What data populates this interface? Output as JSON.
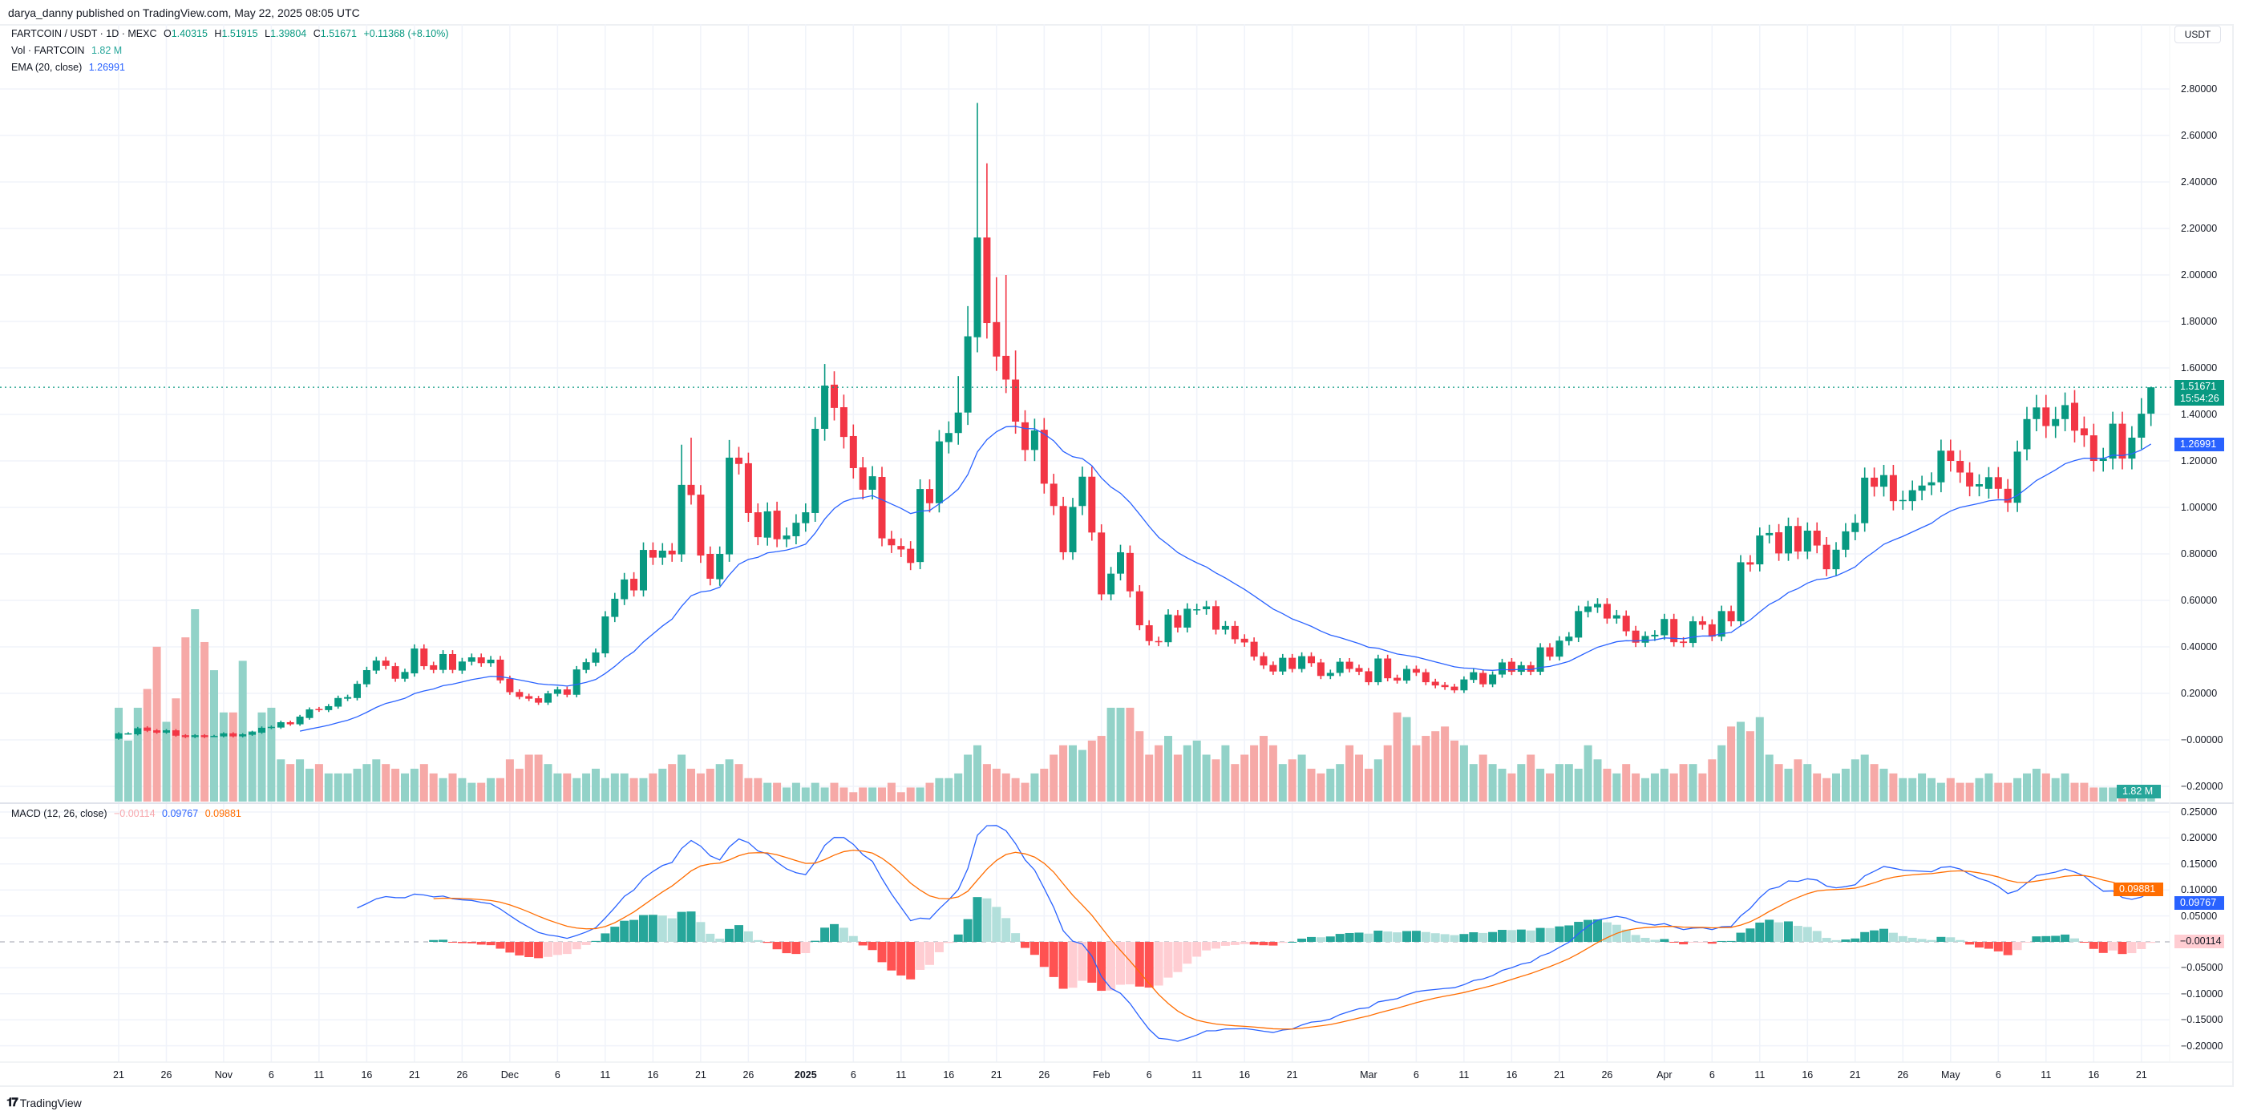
{
  "publisher": "darya_danny published on TradingView.com, May 22, 2025 08:05 UTC",
  "legend": {
    "symbol": "FARTCOIN / USDT · 1D · MEXC",
    "o_label": "O",
    "o": "1.40315",
    "h_label": "H",
    "h": "1.51915",
    "l_label": "L",
    "l": "1.39804",
    "c_label": "C",
    "c": "1.51671",
    "change": "+0.11368 (+8.10%)",
    "vol_label": "Vol · FARTCOIN",
    "vol": "1.82 M",
    "ema_label": "EMA (20, close)",
    "ema": "1.26991",
    "macd_label": "MACD (12, 26, close)",
    "macd_hist": "−0.00114",
    "macd": "0.09767",
    "macd_signal": "0.09881"
  },
  "currency_button": "USDT",
  "badges": {
    "price": "1.51671",
    "countdown": "15:54:26",
    "ema": "1.26991",
    "volume": "1.82 M",
    "signal": "0.09881",
    "macd": "0.09767",
    "hist": "−0.00114"
  },
  "brand": "TradingView",
  "colors": {
    "up": "#089981",
    "down": "#F23645",
    "vol_up": "#92D2C8",
    "vol_down": "#F6A9A7",
    "ema": "#2962FF",
    "macd": "#2962FF",
    "signal": "#FF6D00",
    "hist_up_strong": "#26A69A",
    "hist_up_weak": "#B2DFDB",
    "hist_down_strong": "#FF5252",
    "hist_down_weak": "#FFCDD2"
  },
  "chart_data": {
    "type": "candlestick",
    "title": "FARTCOIN / USDT · 1D · MEXC",
    "first_date": "2024-10-21",
    "last_date": "2025-05-22",
    "price_axis": {
      "unit": "USDT",
      "ticks": [
        "2.80000",
        "2.60000",
        "2.40000",
        "2.20000",
        "2.00000",
        "1.80000",
        "1.60000",
        "1.40000",
        "1.20000",
        "1.00000",
        "0.80000",
        "0.60000",
        "0.40000",
        "0.20000",
        "−0.00000",
        "−0.20000"
      ]
    },
    "macd_axis": {
      "ticks": [
        "0.25000",
        "0.20000",
        "0.15000",
        "0.10000",
        "0.05000",
        "−0.05000",
        "−0.10000",
        "−0.15000",
        "−0.20000"
      ]
    },
    "time_axis": [
      {
        "label": "21",
        "day": 0
      },
      {
        "label": "26",
        "day": 5
      },
      {
        "label": "Nov",
        "day": 11
      },
      {
        "label": "6",
        "day": 16
      },
      {
        "label": "11",
        "day": 21
      },
      {
        "label": "16",
        "day": 26
      },
      {
        "label": "21",
        "day": 31
      },
      {
        "label": "26",
        "day": 36
      },
      {
        "label": "Dec",
        "day": 41
      },
      {
        "label": "6",
        "day": 46
      },
      {
        "label": "11",
        "day": 51
      },
      {
        "label": "16",
        "day": 56
      },
      {
        "label": "21",
        "day": 61
      },
      {
        "label": "26",
        "day": 66
      },
      {
        "label": "2025",
        "day": 72
      },
      {
        "label": "6",
        "day": 77
      },
      {
        "label": "11",
        "day": 82
      },
      {
        "label": "16",
        "day": 87
      },
      {
        "label": "21",
        "day": 92
      },
      {
        "label": "26",
        "day": 97
      },
      {
        "label": "Feb",
        "day": 103
      },
      {
        "label": "6",
        "day": 108
      },
      {
        "label": "11",
        "day": 113
      },
      {
        "label": "16",
        "day": 118
      },
      {
        "label": "21",
        "day": 123
      },
      {
        "label": "Mar",
        "day": 131
      },
      {
        "label": "6",
        "day": 136
      },
      {
        "label": "11",
        "day": 141
      },
      {
        "label": "16",
        "day": 146
      },
      {
        "label": "21",
        "day": 151
      },
      {
        "label": "26",
        "day": 156
      },
      {
        "label": "Apr",
        "day": 162
      },
      {
        "label": "6",
        "day": 167
      },
      {
        "label": "11",
        "day": 172
      },
      {
        "label": "16",
        "day": 177
      },
      {
        "label": "21",
        "day": 182
      },
      {
        "label": "26",
        "day": 187
      },
      {
        "label": "May",
        "day": 192
      },
      {
        "label": "6",
        "day": 197
      },
      {
        "label": "11",
        "day": 202
      },
      {
        "label": "16",
        "day": 207
      },
      {
        "label": "21",
        "day": 212
      }
    ],
    "last_price": 1.51671,
    "oc": [
      [
        0.005,
        0.028
      ],
      [
        0.028,
        0.028
      ],
      [
        0.024,
        0.05
      ],
      [
        0.053,
        0.039
      ],
      [
        0.041,
        0.031
      ],
      [
        0.031,
        0.041
      ],
      [
        0.041,
        0.018
      ],
      [
        0.02,
        0.012
      ],
      [
        0.012,
        0.02
      ],
      [
        0.02,
        0.012
      ],
      [
        0.017,
        0.017
      ],
      [
        0.015,
        0.028
      ],
      [
        0.028,
        0.015
      ],
      [
        0.015,
        0.024
      ],
      [
        0.022,
        0.034
      ],
      [
        0.031,
        0.052
      ],
      [
        0.052,
        0.056
      ],
      [
        0.053,
        0.076
      ],
      [
        0.076,
        0.067
      ],
      [
        0.067,
        0.1
      ],
      [
        0.094,
        0.131
      ],
      [
        0.133,
        0.129
      ],
      [
        0.128,
        0.145
      ],
      [
        0.143,
        0.18
      ],
      [
        0.177,
        0.184
      ],
      [
        0.18,
        0.241
      ],
      [
        0.239,
        0.3
      ],
      [
        0.298,
        0.341
      ],
      [
        0.341,
        0.318
      ],
      [
        0.317,
        0.263
      ],
      [
        0.263,
        0.292
      ],
      [
        0.286,
        0.393
      ],
      [
        0.393,
        0.317
      ],
      [
        0.321,
        0.301
      ],
      [
        0.301,
        0.369
      ],
      [
        0.369,
        0.301
      ],
      [
        0.298,
        0.337
      ],
      [
        0.336,
        0.355
      ],
      [
        0.355,
        0.33
      ],
      [
        0.33,
        0.345
      ],
      [
        0.345,
        0.256
      ],
      [
        0.263,
        0.205
      ],
      [
        0.206,
        0.185
      ],
      [
        0.188,
        0.177
      ],
      [
        0.179,
        0.16
      ],
      [
        0.16,
        0.2
      ],
      [
        0.198,
        0.217
      ],
      [
        0.217,
        0.194
      ],
      [
        0.194,
        0.303
      ],
      [
        0.301,
        0.334
      ],
      [
        0.332,
        0.376
      ],
      [
        0.372,
        0.531
      ],
      [
        0.529,
        0.607
      ],
      [
        0.605,
        0.69
      ],
      [
        0.693,
        0.643
      ],
      [
        0.643,
        0.817
      ],
      [
        0.817,
        0.784
      ],
      [
        0.784,
        0.814
      ],
      [
        0.814,
        0.798
      ],
      [
        0.798,
        1.097
      ],
      [
        1.097,
        1.053
      ],
      [
        1.055,
        0.793
      ],
      [
        0.8,
        0.693
      ],
      [
        0.691,
        0.8
      ],
      [
        0.798,
        1.214
      ],
      [
        1.214,
        1.187
      ],
      [
        1.19,
        0.976
      ],
      [
        0.979,
        0.872
      ],
      [
        0.87,
        0.983
      ],
      [
        0.986,
        0.863
      ],
      [
        0.863,
        0.879
      ],
      [
        0.876,
        0.934
      ],
      [
        0.932,
        0.979
      ],
      [
        0.976,
        1.338
      ],
      [
        1.338,
        1.524
      ],
      [
        1.528,
        1.428
      ],
      [
        1.431,
        1.303
      ],
      [
        1.307,
        1.169
      ],
      [
        1.172,
        1.076
      ],
      [
        1.076,
        1.134
      ],
      [
        1.131,
        0.867
      ],
      [
        0.865,
        0.837
      ],
      [
        0.834,
        0.819
      ],
      [
        0.822,
        0.761
      ],
      [
        0.765,
        1.079
      ],
      [
        1.079,
        1.018
      ],
      [
        1.018,
        1.284
      ],
      [
        1.281,
        1.32
      ],
      [
        1.32,
        1.408
      ],
      [
        1.408,
        1.736
      ],
      [
        1.732,
        2.161
      ],
      [
        2.161,
        1.793
      ],
      [
        1.797,
        1.649
      ],
      [
        1.652,
        1.55
      ],
      [
        1.55,
        1.369
      ],
      [
        1.366,
        1.247
      ],
      [
        1.247,
        1.331
      ],
      [
        1.334,
        1.102
      ],
      [
        1.102,
        1.006
      ],
      [
        1.006,
        0.807
      ],
      [
        0.807,
        1.002
      ],
      [
        1.006,
        1.132
      ],
      [
        1.132,
        0.892
      ],
      [
        0.892,
        0.626
      ],
      [
        0.626,
        0.715
      ],
      [
        0.715,
        0.807
      ],
      [
        0.804,
        0.639
      ],
      [
        0.639,
        0.493
      ],
      [
        0.493,
        0.425
      ],
      [
        0.425,
        0.422
      ],
      [
        0.42,
        0.539
      ],
      [
        0.536,
        0.483
      ],
      [
        0.483,
        0.564
      ],
      [
        0.562,
        0.562
      ],
      [
        0.562,
        0.574
      ],
      [
        0.575,
        0.474
      ],
      [
        0.474,
        0.49
      ],
      [
        0.49,
        0.433
      ],
      [
        0.435,
        0.419
      ],
      [
        0.422,
        0.358
      ],
      [
        0.36,
        0.32
      ],
      [
        0.322,
        0.294
      ],
      [
        0.294,
        0.353
      ],
      [
        0.353,
        0.305
      ],
      [
        0.305,
        0.36
      ],
      [
        0.36,
        0.33
      ],
      [
        0.333,
        0.275
      ],
      [
        0.275,
        0.288
      ],
      [
        0.288,
        0.336
      ],
      [
        0.336,
        0.305
      ],
      [
        0.309,
        0.293
      ],
      [
        0.295,
        0.248
      ],
      [
        0.248,
        0.35
      ],
      [
        0.35,
        0.265
      ],
      [
        0.267,
        0.255
      ],
      [
        0.255,
        0.305
      ],
      [
        0.305,
        0.289
      ],
      [
        0.291,
        0.248
      ],
      [
        0.25,
        0.234
      ],
      [
        0.236,
        0.227
      ],
      [
        0.229,
        0.213
      ],
      [
        0.213,
        0.26
      ],
      [
        0.258,
        0.291
      ],
      [
        0.288,
        0.239
      ],
      [
        0.239,
        0.281
      ],
      [
        0.281,
        0.333
      ],
      [
        0.336,
        0.293
      ],
      [
        0.293,
        0.321
      ],
      [
        0.321,
        0.293
      ],
      [
        0.293,
        0.398
      ],
      [
        0.398,
        0.358
      ],
      [
        0.358,
        0.427
      ],
      [
        0.425,
        0.444
      ],
      [
        0.44,
        0.554
      ],
      [
        0.55,
        0.574
      ],
      [
        0.57,
        0.585
      ],
      [
        0.585,
        0.522
      ],
      [
        0.522,
        0.536
      ],
      [
        0.534,
        0.467
      ],
      [
        0.47,
        0.418
      ],
      [
        0.418,
        0.447
      ],
      [
        0.445,
        0.452
      ],
      [
        0.45,
        0.52
      ],
      [
        0.52,
        0.42
      ],
      [
        0.423,
        0.417
      ],
      [
        0.417,
        0.51
      ],
      [
        0.51,
        0.495
      ],
      [
        0.497,
        0.444
      ],
      [
        0.444,
        0.554
      ],
      [
        0.554,
        0.51
      ],
      [
        0.51,
        0.764
      ],
      [
        0.764,
        0.754
      ],
      [
        0.755,
        0.879
      ],
      [
        0.88,
        0.89
      ],
      [
        0.893,
        0.802
      ],
      [
        0.802,
        0.92
      ],
      [
        0.92,
        0.81
      ],
      [
        0.81,
        0.9
      ],
      [
        0.9,
        0.836
      ],
      [
        0.839,
        0.734
      ],
      [
        0.734,
        0.818
      ],
      [
        0.818,
        0.897
      ],
      [
        0.894,
        0.934
      ],
      [
        0.932,
        1.128
      ],
      [
        1.128,
        1.089
      ],
      [
        1.089,
        1.139
      ],
      [
        1.139,
        1.027
      ],
      [
        1.03,
        1.032
      ],
      [
        1.027,
        1.074
      ],
      [
        1.072,
        1.094
      ],
      [
        1.095,
        1.108
      ],
      [
        1.108,
        1.244
      ],
      [
        1.244,
        1.2
      ],
      [
        1.2,
        1.15
      ],
      [
        1.15,
        1.09
      ],
      [
        1.09,
        1.1
      ],
      [
        1.08,
        1.13
      ],
      [
        1.13,
        1.08
      ],
      [
        1.08,
        1.02
      ],
      [
        1.02,
        1.24
      ],
      [
        1.25,
        1.38
      ],
      [
        1.38,
        1.43
      ],
      [
        1.43,
        1.35
      ],
      [
        1.35,
        1.38
      ],
      [
        1.38,
        1.44
      ],
      [
        1.45,
        1.33
      ],
      [
        1.34,
        1.31
      ],
      [
        1.31,
        1.2
      ],
      [
        1.2,
        1.21
      ],
      [
        1.21,
        1.36
      ],
      [
        1.36,
        1.21
      ],
      [
        1.21,
        1.3
      ],
      [
        1.3,
        1.40303
      ],
      [
        1.40315,
        1.51671
      ]
    ],
    "wick_highs": {
      "59": 1.27,
      "60": 1.3,
      "64": 1.29,
      "74": 1.617,
      "88": 1.565,
      "89": 1.866,
      "90": 2.74,
      "91": 2.48,
      "92": 1.99,
      "93": 2.0,
      "94": 1.675,
      "212": 1.47,
      "213": 1.51915
    },
    "volume_millions": [
      20,
      13,
      20,
      24,
      33,
      17,
      22,
      35,
      41,
      34,
      28,
      19,
      19,
      30,
      15,
      19,
      20,
      9,
      8,
      9,
      7,
      8,
      6,
      6,
      6,
      7,
      8,
      9,
      8,
      7,
      6,
      7,
      8,
      6,
      5,
      6,
      5,
      4,
      4,
      5,
      5,
      9,
      7,
      10,
      10,
      8,
      6,
      6,
      5,
      6,
      7,
      5,
      6,
      6,
      5,
      5,
      6,
      7,
      8,
      10,
      7,
      6,
      7,
      8,
      9,
      8,
      5,
      5,
      4,
      4,
      3,
      4,
      3,
      4,
      3,
      4,
      3,
      2,
      3,
      3,
      3,
      4,
      2,
      3,
      3,
      4,
      5,
      5,
      6,
      10,
      12,
      8,
      7,
      6,
      5,
      4,
      6,
      7,
      10,
      12,
      12,
      11,
      13,
      14,
      20,
      20,
      20,
      15,
      10,
      12,
      14,
      10,
      12,
      13,
      10,
      9,
      12,
      8,
      10,
      12,
      14,
      12,
      8,
      9,
      10,
      7,
      6,
      7,
      8,
      12,
      10,
      7,
      9,
      12,
      19,
      18,
      12,
      14,
      15,
      16,
      13,
      12,
      8,
      10,
      8,
      7,
      6,
      8,
      10,
      7,
      6,
      8,
      8,
      7,
      12,
      9,
      7,
      6,
      8,
      6,
      5,
      6,
      7,
      6,
      8,
      8,
      6,
      9,
      12,
      16,
      17,
      15,
      18,
      10,
      8,
      7,
      9,
      8,
      6,
      5,
      6,
      7,
      9,
      10,
      8,
      7,
      6,
      5,
      5,
      6,
      5,
      4,
      5,
      4,
      4,
      5,
      6,
      4,
      4,
      5,
      6,
      7,
      6,
      5,
      6,
      4,
      4,
      3,
      3,
      3,
      3,
      2.5,
      2.5,
      1.82
    ],
    "indicators": {
      "ema": {
        "length": 20,
        "source": "close",
        "last": 1.26991
      },
      "macd": {
        "fast": 12,
        "slow": 26,
        "signal": 9,
        "last_macd": 0.09767,
        "last_signal": 0.09881,
        "last_hist": -0.00114
      }
    }
  }
}
